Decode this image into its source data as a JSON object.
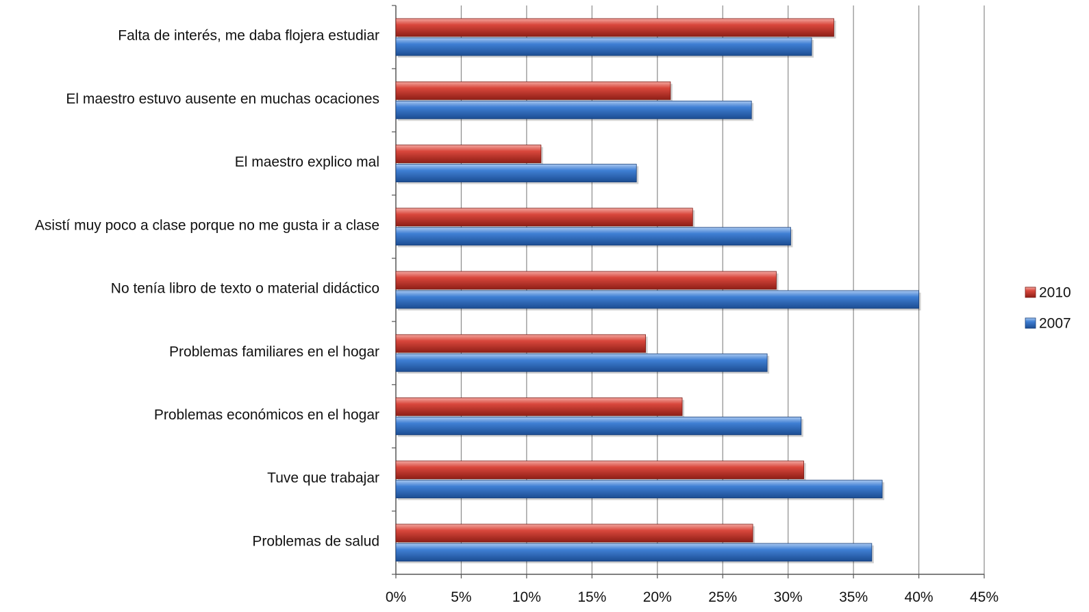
{
  "chart_data": {
    "type": "bar",
    "orientation": "horizontal",
    "title": "",
    "xlabel": "",
    "ylabel": "",
    "categories": [
      "Falta de interés, me daba flojera estudiar",
      "El maestro estuvo ausente en muchas ocaciones",
      "El maestro explico mal",
      "Asistí muy poco a clase porque no me gusta ir a clase",
      "No tenía libro de texto o material didáctico",
      "Problemas familiares en el hogar",
      "Problemas económicos en el hogar",
      "Tuve que trabajar",
      "Problemas de salud"
    ],
    "series": [
      {
        "name": "2010",
        "color": "#c0392b",
        "values": [
          33.5,
          21.0,
          11.1,
          22.7,
          29.1,
          19.1,
          21.9,
          31.2,
          27.3
        ]
      },
      {
        "name": "2007",
        "color": "#2e6fc4",
        "values": [
          31.8,
          27.2,
          18.4,
          30.2,
          40.0,
          28.4,
          31.0,
          37.2,
          36.4
        ]
      }
    ],
    "xlim": [
      0,
      45
    ],
    "x_ticks": [
      0,
      5,
      10,
      15,
      20,
      25,
      30,
      35,
      40,
      45
    ],
    "tick_labels": [
      "0%",
      "5%",
      "10%",
      "15%",
      "20%",
      "25%",
      "30%",
      "35%",
      "40%",
      "45%"
    ],
    "grid": true,
    "legend_position": "right"
  }
}
